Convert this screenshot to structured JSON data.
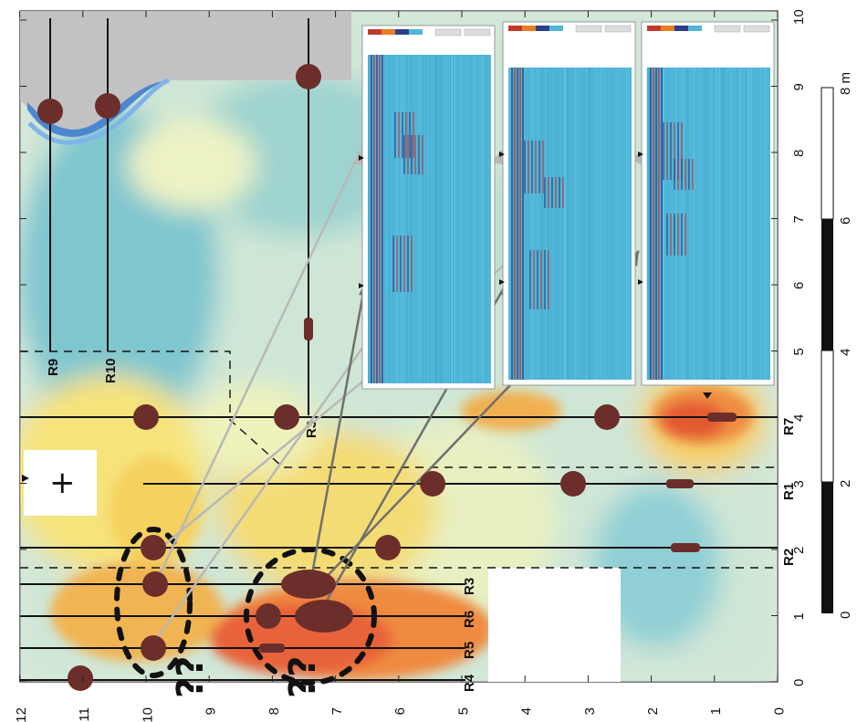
{
  "axes": {
    "bottom_ticks": [
      "0",
      "1",
      "2",
      "3",
      "4",
      "5",
      "6",
      "7",
      "8",
      "9",
      "10"
    ],
    "left_ticks": [
      "12",
      "11",
      "10",
      "9",
      "8",
      "7",
      "6",
      "5",
      "4",
      "3",
      "2",
      "1",
      "0"
    ]
  },
  "profile_lines": {
    "vertical": [
      "R4",
      "R5",
      "R6",
      "R3",
      "R2",
      "R1",
      "R7"
    ],
    "horizontal": [
      "R9",
      "R10",
      "R3"
    ]
  },
  "scale_bar": {
    "labels": [
      "0",
      "2",
      "4",
      "6",
      "8 m"
    ]
  },
  "marks": {
    "question": "??",
    "plus": "+"
  },
  "colors": {
    "high_amplitude": "#e8643a",
    "medium_amplitude": "#f5d86a",
    "low_amplitude": "#c9e3d3",
    "background_amplitude": "#5fb6c9",
    "anomaly_marker": "#6b2e2a",
    "building": "#c0c0c0",
    "radargram_base": "#4fb6d8"
  }
}
